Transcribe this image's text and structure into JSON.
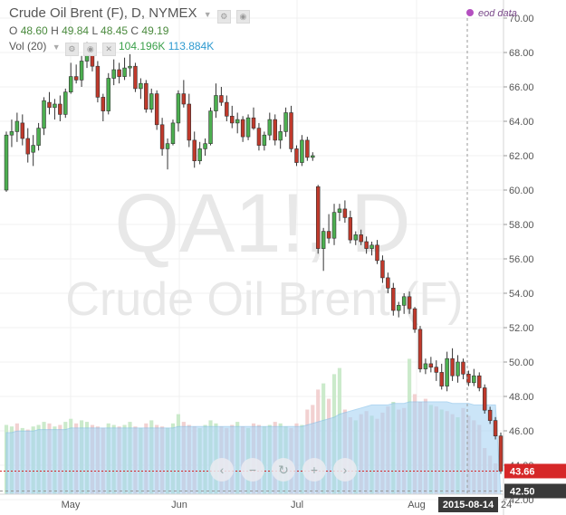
{
  "header": {
    "title": "Crude Oil Brent (F), D, NYMEX",
    "ohlc": {
      "o_label": "O",
      "o": "48.60",
      "h_label": "H",
      "h": "49.84",
      "l_label": "L",
      "l": "48.45",
      "c_label": "C",
      "c": "49.19"
    },
    "volume": {
      "label": "Vol (20)",
      "value1": "104.196K",
      "value2": "113.884K"
    }
  },
  "eod_label": "eod data",
  "watermark": {
    "symbol": "QA1!, D",
    "name": "Crude Oil Brent (F)"
  },
  "colors": {
    "up": "#4caf50",
    "down": "#c0392b",
    "vol_ma": "#9fd0f0",
    "price_line": "#d62728",
    "marker_line": "#b44fc0"
  },
  "chart_data": {
    "type": "candlestick",
    "title": "Crude Oil Brent (F), D, NYMEX",
    "y_ticks": [
      "70.00",
      "68.00",
      "66.00",
      "64.00",
      "62.00",
      "60.00",
      "58.00",
      "56.00",
      "54.00",
      "52.00",
      "50.00",
      "48.00",
      "46.00",
      "44.00",
      "42.00"
    ],
    "ylim": [
      41.0,
      71.0
    ],
    "x_ticks": [
      "May",
      "Jun",
      "Jul",
      "Aug"
    ],
    "last_price_label": "43.66",
    "crosshair_price_label": "42.50",
    "date_label": "2015-08-14",
    "date_label_suffix": "24",
    "candles": [
      {
        "o": 60.0,
        "h": 63.4,
        "l": 59.9,
        "c": 63.2
      },
      {
        "o": 63.2,
        "h": 64.1,
        "l": 62.5,
        "c": 63.4
      },
      {
        "o": 63.4,
        "h": 64.5,
        "l": 62.8,
        "c": 64.0
      },
      {
        "o": 63.9,
        "h": 64.4,
        "l": 62.6,
        "c": 63.0
      },
      {
        "o": 63.0,
        "h": 63.6,
        "l": 61.6,
        "c": 62.1
      },
      {
        "o": 62.2,
        "h": 63.2,
        "l": 61.4,
        "c": 62.6
      },
      {
        "o": 62.6,
        "h": 63.9,
        "l": 62.3,
        "c": 63.6
      },
      {
        "o": 63.6,
        "h": 65.4,
        "l": 63.2,
        "c": 65.2
      },
      {
        "o": 65.1,
        "h": 65.7,
        "l": 64.4,
        "c": 64.8
      },
      {
        "o": 64.8,
        "h": 65.3,
        "l": 64.1,
        "c": 65.0
      },
      {
        "o": 65.0,
        "h": 65.5,
        "l": 64.0,
        "c": 64.4
      },
      {
        "o": 64.4,
        "h": 65.9,
        "l": 64.2,
        "c": 65.7
      },
      {
        "o": 65.7,
        "h": 67.4,
        "l": 65.6,
        "c": 66.6
      },
      {
        "o": 66.6,
        "h": 67.3,
        "l": 66.2,
        "c": 66.4
      },
      {
        "o": 66.4,
        "h": 67.8,
        "l": 66.0,
        "c": 67.5
      },
      {
        "o": 67.5,
        "h": 68.6,
        "l": 67.1,
        "c": 67.9
      },
      {
        "o": 67.9,
        "h": 68.2,
        "l": 66.9,
        "c": 67.2
      },
      {
        "o": 67.2,
        "h": 67.5,
        "l": 65.1,
        "c": 65.4
      },
      {
        "o": 65.4,
        "h": 65.6,
        "l": 64.0,
        "c": 64.6
      },
      {
        "o": 64.6,
        "h": 66.8,
        "l": 64.4,
        "c": 66.5
      },
      {
        "o": 66.5,
        "h": 67.6,
        "l": 66.1,
        "c": 67.0
      },
      {
        "o": 67.0,
        "h": 67.4,
        "l": 66.2,
        "c": 66.6
      },
      {
        "o": 66.6,
        "h": 67.7,
        "l": 66.4,
        "c": 67.1
      },
      {
        "o": 67.1,
        "h": 67.9,
        "l": 66.6,
        "c": 67.2
      },
      {
        "o": 67.2,
        "h": 67.4,
        "l": 65.7,
        "c": 65.9
      },
      {
        "o": 65.9,
        "h": 66.5,
        "l": 65.3,
        "c": 66.2
      },
      {
        "o": 66.2,
        "h": 66.4,
        "l": 64.5,
        "c": 64.7
      },
      {
        "o": 64.7,
        "h": 65.9,
        "l": 64.5,
        "c": 65.6
      },
      {
        "o": 65.6,
        "h": 65.8,
        "l": 63.5,
        "c": 63.8
      },
      {
        "o": 63.8,
        "h": 64.2,
        "l": 62.0,
        "c": 62.4
      },
      {
        "o": 62.4,
        "h": 63.0,
        "l": 61.2,
        "c": 62.7
      },
      {
        "o": 62.7,
        "h": 64.1,
        "l": 62.6,
        "c": 63.9
      },
      {
        "o": 63.9,
        "h": 65.8,
        "l": 63.4,
        "c": 65.6
      },
      {
        "o": 65.6,
        "h": 66.4,
        "l": 64.8,
        "c": 65.0
      },
      {
        "o": 65.0,
        "h": 65.6,
        "l": 62.5,
        "c": 62.9
      },
      {
        "o": 62.9,
        "h": 63.4,
        "l": 61.3,
        "c": 61.7
      },
      {
        "o": 61.7,
        "h": 62.8,
        "l": 61.5,
        "c": 62.4
      },
      {
        "o": 62.4,
        "h": 63.0,
        "l": 62.0,
        "c": 62.7
      },
      {
        "o": 62.7,
        "h": 64.8,
        "l": 62.6,
        "c": 64.6
      },
      {
        "o": 64.6,
        "h": 66.2,
        "l": 64.2,
        "c": 65.5
      },
      {
        "o": 65.5,
        "h": 66.0,
        "l": 64.9,
        "c": 65.1
      },
      {
        "o": 65.1,
        "h": 65.5,
        "l": 64.0,
        "c": 64.3
      },
      {
        "o": 64.3,
        "h": 64.9,
        "l": 63.6,
        "c": 63.9
      },
      {
        "o": 63.9,
        "h": 64.5,
        "l": 63.3,
        "c": 64.1
      },
      {
        "o": 64.1,
        "h": 64.3,
        "l": 62.8,
        "c": 63.1
      },
      {
        "o": 63.1,
        "h": 64.4,
        "l": 62.9,
        "c": 64.2
      },
      {
        "o": 64.2,
        "h": 64.8,
        "l": 63.5,
        "c": 63.6
      },
      {
        "o": 63.6,
        "h": 63.9,
        "l": 62.3,
        "c": 62.6
      },
      {
        "o": 62.6,
        "h": 63.4,
        "l": 62.3,
        "c": 63.2
      },
      {
        "o": 63.2,
        "h": 64.5,
        "l": 62.9,
        "c": 64.1
      },
      {
        "o": 64.1,
        "h": 64.4,
        "l": 62.6,
        "c": 62.9
      },
      {
        "o": 62.9,
        "h": 63.8,
        "l": 62.4,
        "c": 63.4
      },
      {
        "o": 63.4,
        "h": 64.8,
        "l": 63.1,
        "c": 64.5
      },
      {
        "o": 64.5,
        "h": 64.9,
        "l": 62.2,
        "c": 62.4
      },
      {
        "o": 62.4,
        "h": 62.6,
        "l": 61.4,
        "c": 61.6
      },
      {
        "o": 61.6,
        "h": 63.2,
        "l": 61.4,
        "c": 62.9
      },
      {
        "o": 62.9,
        "h": 63.1,
        "l": 61.7,
        "c": 61.9
      },
      {
        "o": 61.9,
        "h": 62.2,
        "l": 61.7,
        "c": 62.0
      },
      {
        "o": 60.2,
        "h": 60.3,
        "l": 56.3,
        "c": 56.6
      },
      {
        "o": 56.6,
        "h": 57.8,
        "l": 55.3,
        "c": 57.6
      },
      {
        "o": 57.6,
        "h": 58.6,
        "l": 56.9,
        "c": 57.2
      },
      {
        "o": 57.2,
        "h": 59.2,
        "l": 56.8,
        "c": 58.7
      },
      {
        "o": 58.7,
        "h": 59.2,
        "l": 58.2,
        "c": 58.9
      },
      {
        "o": 58.9,
        "h": 59.4,
        "l": 58.1,
        "c": 58.4
      },
      {
        "o": 58.4,
        "h": 58.8,
        "l": 56.9,
        "c": 57.1
      },
      {
        "o": 57.1,
        "h": 57.6,
        "l": 56.8,
        "c": 57.4
      },
      {
        "o": 57.4,
        "h": 57.7,
        "l": 56.8,
        "c": 57.0
      },
      {
        "o": 57.0,
        "h": 57.3,
        "l": 56.3,
        "c": 56.6
      },
      {
        "o": 56.6,
        "h": 57.0,
        "l": 56.2,
        "c": 56.8
      },
      {
        "o": 56.8,
        "h": 57.1,
        "l": 55.7,
        "c": 55.9
      },
      {
        "o": 55.9,
        "h": 56.2,
        "l": 54.6,
        "c": 54.9
      },
      {
        "o": 54.9,
        "h": 55.2,
        "l": 54.0,
        "c": 54.3
      },
      {
        "o": 54.3,
        "h": 54.6,
        "l": 52.7,
        "c": 53.0
      },
      {
        "o": 53.0,
        "h": 53.5,
        "l": 52.6,
        "c": 53.3
      },
      {
        "o": 53.3,
        "h": 54.0,
        "l": 52.8,
        "c": 53.8
      },
      {
        "o": 53.8,
        "h": 54.1,
        "l": 52.8,
        "c": 53.1
      },
      {
        "o": 53.1,
        "h": 53.2,
        "l": 51.7,
        "c": 51.9
      },
      {
        "o": 51.9,
        "h": 52.1,
        "l": 49.4,
        "c": 49.6
      },
      {
        "o": 49.6,
        "h": 50.2,
        "l": 49.3,
        "c": 49.9
      },
      {
        "o": 49.9,
        "h": 50.3,
        "l": 49.4,
        "c": 49.7
      },
      {
        "o": 49.7,
        "h": 50.1,
        "l": 48.9,
        "c": 49.4
      },
      {
        "o": 49.4,
        "h": 49.9,
        "l": 48.4,
        "c": 48.6
      },
      {
        "o": 48.6,
        "h": 50.6,
        "l": 48.3,
        "c": 50.2
      },
      {
        "o": 50.2,
        "h": 50.8,
        "l": 48.9,
        "c": 49.2
      },
      {
        "o": 49.2,
        "h": 50.4,
        "l": 48.8,
        "c": 50.0
      },
      {
        "o": 50.0,
        "h": 50.2,
        "l": 49.0,
        "c": 49.3
      },
      {
        "o": 49.3,
        "h": 49.5,
        "l": 48.6,
        "c": 48.8
      },
      {
        "o": 48.8,
        "h": 49.6,
        "l": 48.6,
        "c": 49.2
      },
      {
        "o": 49.2,
        "h": 49.4,
        "l": 48.3,
        "c": 48.5
      },
      {
        "o": 48.5,
        "h": 48.7,
        "l": 47.0,
        "c": 47.2
      },
      {
        "o": 47.2,
        "h": 47.4,
        "l": 46.4,
        "c": 46.6
      },
      {
        "o": 46.6,
        "h": 46.8,
        "l": 45.5,
        "c": 45.7
      },
      {
        "o": 45.7,
        "h": 45.9,
        "l": 43.5,
        "c": 43.66
      }
    ],
    "volume": [
      45,
      44,
      46,
      43,
      42,
      44,
      45,
      47,
      46,
      44,
      45,
      47,
      49,
      46,
      48,
      47,
      45,
      44,
      43,
      46,
      45,
      44,
      45,
      47,
      44,
      43,
      46,
      48,
      45,
      44,
      43,
      46,
      52,
      47,
      45,
      44,
      43,
      45,
      48,
      46,
      44,
      43,
      45,
      47,
      44,
      43,
      46,
      45,
      44,
      45,
      47,
      46,
      44,
      43,
      46,
      45,
      55,
      58,
      68,
      72,
      62,
      78,
      82,
      55,
      50,
      48,
      52,
      54,
      51,
      49,
      53,
      57,
      60,
      55,
      56,
      88,
      65,
      60,
      62,
      58,
      57,
      55,
      54,
      52,
      50,
      56,
      51,
      48,
      45,
      30,
      25,
      20
    ],
    "volume_colors": [
      "up",
      "up",
      "down",
      "up",
      "down",
      "up",
      "up",
      "up",
      "down",
      "up",
      "down",
      "up",
      "up",
      "down",
      "up",
      "up",
      "down",
      "down",
      "down",
      "up",
      "up",
      "down",
      "up",
      "up",
      "down",
      "up",
      "down",
      "up",
      "down",
      "down",
      "up",
      "up",
      "up",
      "down",
      "down",
      "down",
      "up",
      "up",
      "up",
      "up",
      "down",
      "down",
      "down",
      "up",
      "down",
      "up",
      "down",
      "down",
      "up",
      "up",
      "down",
      "up",
      "up",
      "down",
      "down",
      "up",
      "down",
      "down",
      "down",
      "up",
      "down",
      "up",
      "up",
      "down",
      "down",
      "up",
      "down",
      "down",
      "up",
      "down",
      "down",
      "down",
      "up",
      "down",
      "down",
      "up",
      "down",
      "down",
      "down",
      "up",
      "down",
      "up",
      "down",
      "down",
      "up",
      "down",
      "down",
      "down",
      "down",
      "down",
      "down",
      "down"
    ],
    "volume_ma": [
      40,
      40,
      41,
      41,
      41,
      41,
      42,
      42,
      42,
      42,
      42,
      42,
      43,
      43,
      43,
      43,
      43,
      43,
      43,
      43,
      43,
      43,
      43,
      43,
      43,
      43,
      43,
      43,
      43,
      43,
      43,
      43,
      44,
      44,
      44,
      44,
      44,
      44,
      44,
      44,
      44,
      44,
      44,
      44,
      44,
      44,
      44,
      44,
      44,
      44,
      44,
      44,
      44,
      44,
      44,
      44,
      45,
      46,
      47,
      48,
      49,
      50,
      52,
      53,
      54,
      55,
      56,
      57,
      58,
      58,
      58,
      58,
      59,
      59,
      59,
      60,
      60,
      60,
      60,
      60,
      60,
      60,
      60,
      59,
      59,
      59,
      59,
      58,
      58,
      58,
      58,
      58
    ]
  }
}
